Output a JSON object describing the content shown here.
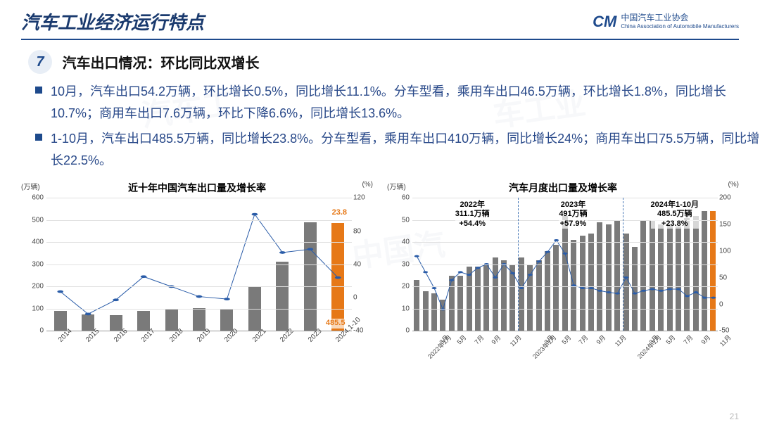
{
  "header": {
    "title": "汽车工业经济运行特点",
    "org_name": "中国汽车工业协会",
    "org_sub": "China Association of Automobile Manufacturers",
    "logo_mark": "CM"
  },
  "section": {
    "number": "7",
    "title": "汽车出口情况：环比同比双增长"
  },
  "bullets": [
    "10月，汽车出口54.2万辆，环比增长0.5%，同比增长11.1%。分车型看，乘用车出口46.5万辆，环比增长1.8%，同比增长10.7%；商用车出口7.6万辆，环比下降6.6%，同比增长13.6%。",
    "1-10月，汽车出口485.5万辆，同比增长23.8%。分车型看，乘用车出口410万辆，同比增长24%；商用车出口75.5万辆，同比增长22.5%。"
  ],
  "chart1": {
    "title": "近十年中国汽车出口量及增长率",
    "y_left_unit": "(万辆)",
    "y_right_unit": "(%)",
    "y_left_max": 600,
    "y_left_step": 100,
    "y_right_max": 120,
    "y_right_min": -40,
    "y_right_step": 40,
    "bar_color": "#7a7a7a",
    "highlight_color": "#e67817",
    "line_color": "#2a5ca8",
    "x": [
      "2014",
      "2015",
      "2016",
      "2017",
      "2018",
      "2019",
      "2020",
      "2021",
      "2022",
      "2023",
      "2024.1-10"
    ],
    "bars": [
      91,
      73,
      71,
      89,
      101,
      102,
      100,
      202,
      311,
      491,
      485.5
    ],
    "growth": [
      7,
      -20,
      -3,
      25,
      13,
      1,
      -2,
      100,
      54,
      58,
      23.8
    ],
    "highlight_index": 10,
    "label_value": "485.5",
    "label_growth": "23.8"
  },
  "chart2": {
    "title": "汽车月度出口量及增长率",
    "y_left_unit": "(万辆)",
    "y_right_unit": "(%)",
    "y_left_max": 60,
    "y_left_step": 10,
    "y_right_max": 200,
    "y_right_min": -50,
    "y_right_step": 50,
    "bar_color": "#7a7a7a",
    "highlight_color": "#e67817",
    "line_color": "#2a5ca8",
    "x_major": [
      "2022年1月",
      "3月",
      "5月",
      "7月",
      "9月",
      "11月",
      "2023年1月",
      "3月",
      "5月",
      "7月",
      "9月",
      "11月",
      "2024年1月",
      "3月",
      "5月",
      "7月",
      "9月",
      "11月"
    ],
    "bars": [
      23,
      18,
      17,
      14,
      25,
      25,
      29,
      29,
      30,
      33,
      32,
      30,
      33,
      30,
      32,
      36,
      39,
      52,
      41,
      43,
      44,
      49,
      48,
      50,
      44,
      38,
      50,
      50,
      48,
      48,
      47,
      51,
      52,
      54,
      54
    ],
    "growth": [
      90,
      60,
      30,
      -10,
      45,
      60,
      55,
      68,
      75,
      50,
      75,
      58,
      30,
      55,
      80,
      98,
      120,
      95,
      35,
      30,
      30,
      25,
      22,
      20,
      50,
      20,
      25,
      28,
      25,
      28,
      28,
      15,
      22,
      12,
      12
    ],
    "highlight_index": 34,
    "annotations": [
      {
        "text_l1": "2022年",
        "text_l2": "311.1万辆",
        "text_l3": "+54.4%",
        "left_pct": 14
      },
      {
        "text_l1": "2023年",
        "text_l2": "491万辆",
        "text_l3": "+57.9%",
        "left_pct": 48
      },
      {
        "text_l1": "2024年1-10月",
        "text_l2": "485.5万辆",
        "text_l3": "+23.8%",
        "left_pct": 78
      }
    ],
    "vlines_pct": [
      34.5,
      69
    ]
  },
  "page_number": "21"
}
